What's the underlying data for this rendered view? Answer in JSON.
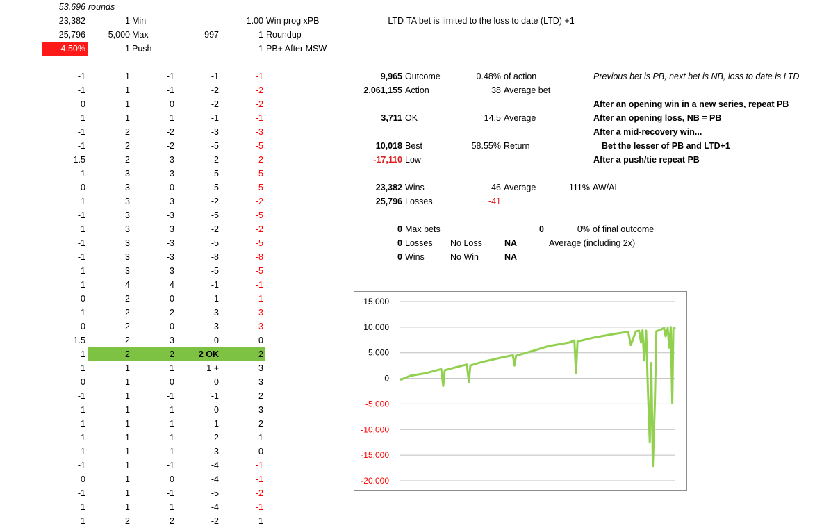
{
  "colors": {
    "line": "#92d050",
    "negative": "#ff0000",
    "highlight_green": "#7dc242",
    "highlight_red": "#ff1a1a"
  },
  "top": {
    "rounds_value": "53,696",
    "rounds_label": "rounds",
    "r2": [
      "23,382",
      "1",
      "Min",
      "",
      "1.00",
      "Win prog xPB",
      "LTD",
      "TA bet is limited to the loss to date (LTD) +1"
    ],
    "r3": [
      "25,796",
      "5,000",
      "Max",
      "997",
      "1",
      "Roundup"
    ],
    "r4": [
      "-4.50%",
      "1",
      "Push",
      "1",
      "PB+ After MSW"
    ]
  },
  "rows": [
    [
      "-1",
      "1",
      "-1",
      "-1",
      "-1"
    ],
    [
      "-1",
      "1",
      "-1",
      "-2",
      "-2"
    ],
    [
      "0",
      "1",
      "0",
      "-2",
      "-2"
    ],
    [
      "1",
      "1",
      "1",
      "-1",
      "-1"
    ],
    [
      "-1",
      "2",
      "-2",
      "-3",
      "-3"
    ],
    [
      "-1",
      "2",
      "-2",
      "-5",
      "-5"
    ],
    [
      "1.5",
      "2",
      "3",
      "-2",
      "-2"
    ],
    [
      "-1",
      "3",
      "-3",
      "-5",
      "-5"
    ],
    [
      "0",
      "3",
      "0",
      "-5",
      "-5"
    ],
    [
      "1",
      "3",
      "3",
      "-2",
      "-2"
    ],
    [
      "-1",
      "3",
      "-3",
      "-5",
      "-5"
    ],
    [
      "1",
      "3",
      "3",
      "-2",
      "-2"
    ],
    [
      "-1",
      "3",
      "-3",
      "-5",
      "-5"
    ],
    [
      "-1",
      "3",
      "-3",
      "-8",
      "-8"
    ],
    [
      "1",
      "3",
      "3",
      "-5",
      "-5"
    ],
    [
      "1",
      "4",
      "4",
      "-1",
      "-1"
    ],
    [
      "0",
      "2",
      "0",
      "-1",
      "-1"
    ],
    [
      "-1",
      "2",
      "-2",
      "-3",
      "-3"
    ],
    [
      "0",
      "2",
      "0",
      "-3",
      "-3"
    ],
    [
      "1.5",
      "2",
      "3",
      "0",
      "0"
    ],
    [
      "1",
      "2",
      "2",
      "2 OK",
      "2"
    ],
    [
      "1",
      "1",
      "1",
      "1 +",
      "3"
    ],
    [
      "0",
      "1",
      "0",
      "0",
      "3"
    ],
    [
      "-1",
      "1",
      "-1",
      "-1",
      "2"
    ],
    [
      "1",
      "1",
      "1",
      "0",
      "3"
    ],
    [
      "-1",
      "1",
      "-1",
      "-1",
      "2"
    ],
    [
      "-1",
      "1",
      "-1",
      "-2",
      "1"
    ],
    [
      "-1",
      "1",
      "-1",
      "-3",
      "0"
    ],
    [
      "-1",
      "1",
      "-1",
      "-4",
      "-1"
    ],
    [
      "0",
      "1",
      "0",
      "-4",
      "-1"
    ],
    [
      "-1",
      "1",
      "-1",
      "-5",
      "-2"
    ],
    [
      "1",
      "1",
      "1",
      "-4",
      "-1"
    ],
    [
      "1",
      "2",
      "2",
      "-2",
      "1"
    ]
  ],
  "stats": {
    "outcome_val": "9,965",
    "outcome_label": "Outcome",
    "outcome_pct": "0.48%",
    "outcome_pct_label": "of action",
    "action_val": "2,061,155",
    "action_label": "Action",
    "avg_bet_val": "38",
    "avg_bet_label": "Average bet",
    "ok_val": "3,711",
    "ok_label": "OK",
    "ok_avg_val": "14.5",
    "ok_avg_label": "Average",
    "best_val": "10,018",
    "best_label": "Best",
    "return_val": "58.55%",
    "return_label": "Return",
    "low_val": "-17,110",
    "low_label": "Low",
    "wins_val": "23,382",
    "wins_label": "Wins",
    "wins_avg_val": "46",
    "wins_avg_label": "Average",
    "awal_val": "111%",
    "awal_label": "AW/AL",
    "losses_val": "25,796",
    "losses_label": "Losses",
    "losses_avg_val": "-41",
    "maxbets_val": "0",
    "maxbets_label": "Max bets",
    "maxbets_extra": "0",
    "final_pct": "0%",
    "final_label": "of final outcome",
    "mb_losses_val": "0",
    "mb_losses_label": "Losses",
    "noloss": "No Loss",
    "na1": "NA",
    "avg_incl": "Average (including 2x)",
    "mb_wins_val": "0",
    "mb_wins_label": "Wins",
    "nowin": "No Win",
    "na2": "NA"
  },
  "notes": {
    "n1": "Previous bet is PB, next bet is NB, loss to date is LTD",
    "n2": "After an opening win in a new series, repeat PB",
    "n3": "After an opening loss, NB = PB",
    "n4": "After a mid-recovery win...",
    "n5": "Bet the lesser of PB and LTD+1",
    "n6": "After a push/tie repeat PB"
  },
  "chart_data": {
    "type": "line",
    "ylim": [
      -20000,
      15000
    ],
    "yticks": [
      15000,
      10000,
      5000,
      0,
      -5000,
      -10000,
      -15000,
      -20000
    ],
    "ytick_labels": [
      "15,000",
      "10,000",
      "5,000",
      "0",
      "-5,000",
      "-10,000",
      "-15,000",
      "-20,000"
    ],
    "xlim": [
      0,
      53696
    ],
    "series": [
      {
        "x": [
          0,
          2000,
          5000,
          8000,
          8400,
          8700,
          11000,
          13000,
          13400,
          13700,
          16000,
          20000,
          22000,
          22300,
          22600,
          26000,
          29000,
          33000,
          34000,
          34300,
          34600,
          38000,
          42000,
          44000,
          44500,
          45000,
          46000,
          46600,
          47000,
          47300,
          47600,
          48000,
          48300,
          48700,
          49000,
          49300,
          49700,
          50000,
          50600,
          51000,
          51500,
          51800,
          52200,
          52500,
          52800,
          53100,
          53300,
          53696
        ],
        "y": [
          -300,
          500,
          1000,
          1800,
          -1500,
          1600,
          2200,
          2700,
          -700,
          2500,
          3200,
          4100,
          4500,
          2500,
          4400,
          5400,
          6300,
          7000,
          7400,
          1000,
          7200,
          8000,
          8700,
          9000,
          9100,
          6500,
          9200,
          9300,
          7000,
          9400,
          3500,
          9300,
          -1000,
          -12500,
          3000,
          -17110,
          -5000,
          9200,
          9400,
          9600,
          9800,
          8200,
          9800,
          6000,
          10018,
          -4800,
          9700,
          9965
        ]
      }
    ]
  }
}
